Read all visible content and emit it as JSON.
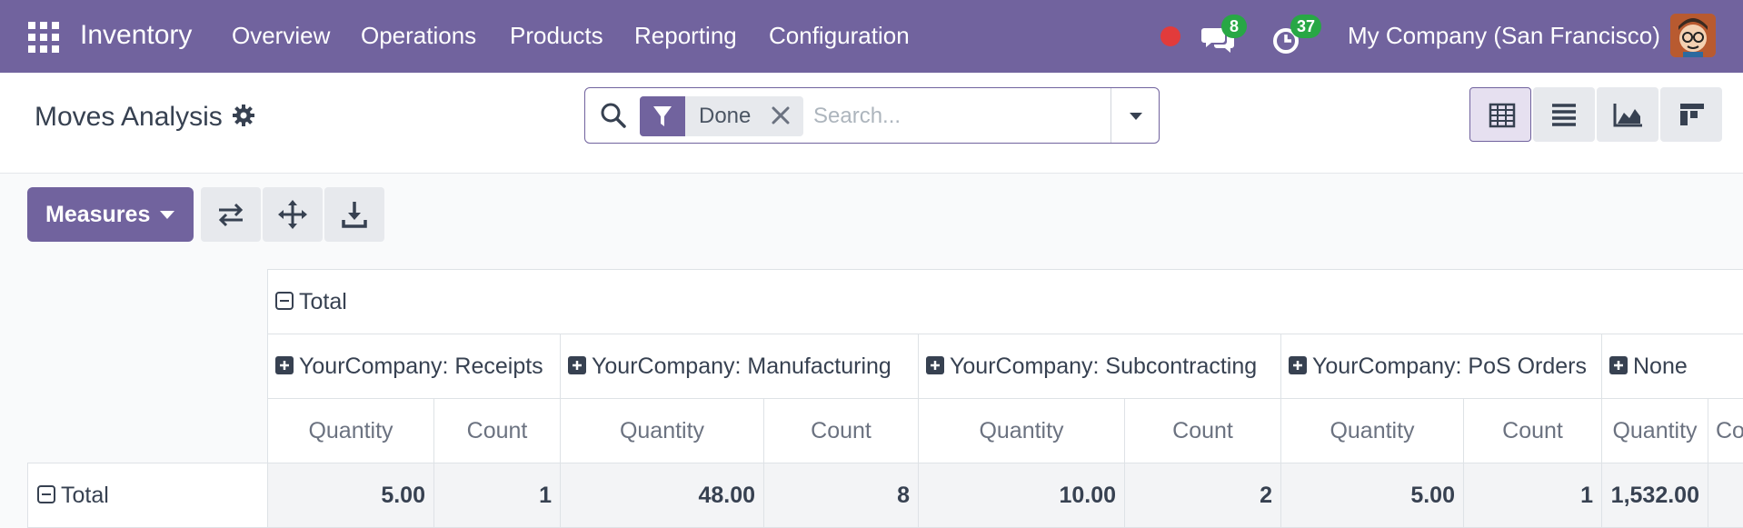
{
  "topbar": {
    "app_name": "Inventory",
    "menu": [
      "Overview",
      "Operations",
      "Products",
      "Reporting",
      "Configuration"
    ],
    "messages_count": "8",
    "activities_count": "37",
    "company": "My Company (San Francisco)"
  },
  "page": {
    "title": "Moves Analysis"
  },
  "search": {
    "facet_label": "Done",
    "placeholder": "Search..."
  },
  "toolbar": {
    "measures_label": "Measures"
  },
  "pivot": {
    "total_label": "Total",
    "groups": [
      "YourCompany: Receipts",
      "YourCompany: Manufacturing",
      "YourCompany: Subcontracting",
      "YourCompany: PoS Orders",
      "None"
    ],
    "measures": [
      "Quantity",
      "Count"
    ],
    "last_count_partial": "Co",
    "row_label": "Total",
    "values": [
      "5.00",
      "1",
      "48.00",
      "8",
      "10.00",
      "2",
      "5.00",
      "1",
      "1,532.00",
      ""
    ]
  },
  "colors": {
    "brand": "#71639e",
    "badge": "#28a745",
    "record": "#e23b3b"
  }
}
